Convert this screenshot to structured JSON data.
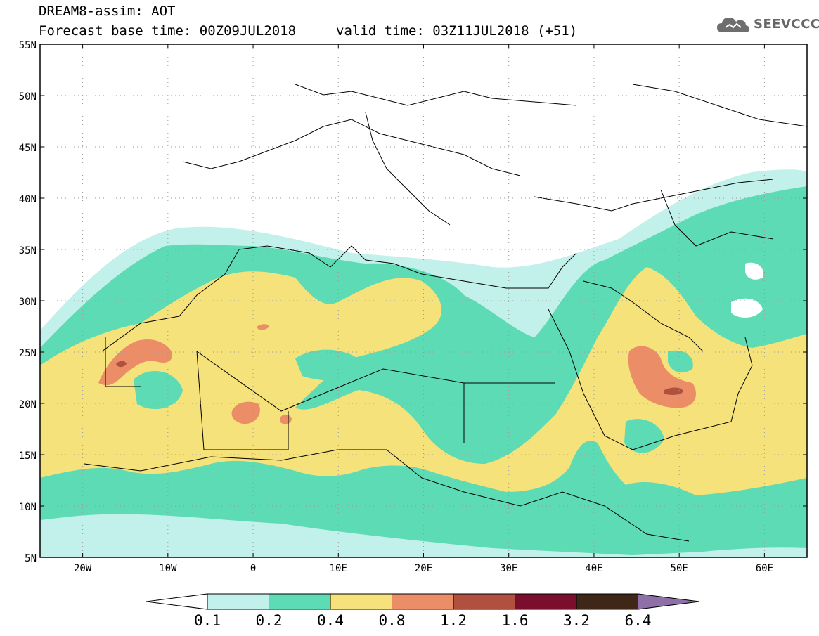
{
  "header": {
    "line1": "DREAM8-assim: AOT",
    "line2_left": "Forecast base time: 00Z09JUL2018",
    "line2_right": "valid time: 03Z11JUL2018 (+51)",
    "logo_text": "SEEVCCC",
    "logo_icon": "cloud-logo-icon"
  },
  "map": {
    "lat_labels": [
      "55N",
      "50N",
      "45N",
      "40N",
      "35N",
      "30N",
      "25N",
      "20N",
      "15N",
      "10N",
      "5N"
    ],
    "lon_labels": [
      "20W",
      "10W",
      "0",
      "10E",
      "20E",
      "30E",
      "40E",
      "50E",
      "60E"
    ],
    "extent": {
      "lon": [
        -25,
        65
      ],
      "lat": [
        5,
        55
      ]
    }
  },
  "legend": {
    "labels": [
      "0.1",
      "0.2",
      "0.4",
      "0.8",
      "1.2",
      "1.6",
      "3.2",
      "6.4"
    ],
    "colors": [
      "#ffffff",
      "#c2f0ea",
      "#5ddbb4",
      "#f5e27a",
      "#eb8e68",
      "#b0503e",
      "#7a0e2c",
      "#3e2716",
      "#8f6fa8"
    ]
  }
}
